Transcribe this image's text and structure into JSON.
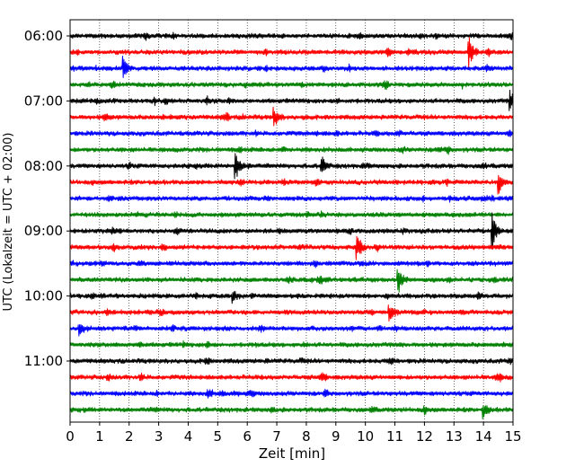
{
  "chart_data": {
    "type": "line",
    "subtype": "helicorder",
    "xlabel": "Zeit  [min]",
    "ylabel": "UTC (Lokalzeit = UTC + 02:00)",
    "xlim": [
      0,
      15
    ],
    "x_ticks": [
      0,
      1,
      2,
      3,
      4,
      5,
      6,
      7,
      8,
      9,
      10,
      11,
      12,
      13,
      14,
      15
    ],
    "grid": "vertical-dotted",
    "trace_interval_min": 15,
    "trace_count": 24,
    "y_tick_labels": [
      "06:00",
      "07:00",
      "08:00",
      "09:00",
      "10:00",
      "11:00"
    ],
    "y_tick_trace_index": [
      0,
      4,
      8,
      12,
      16,
      20
    ],
    "color_cycle": [
      "#000000",
      "#ff0000",
      "#0000ff",
      "#008000"
    ],
    "events": [
      {
        "trace": 1,
        "minute": 13.5,
        "amplitude": 1.6
      },
      {
        "trace": 2,
        "minute": 1.8,
        "amplitude": 1.1
      },
      {
        "trace": 4,
        "minute": 14.9,
        "amplitude": 1.2
      },
      {
        "trace": 5,
        "minute": 6.9,
        "amplitude": 1.1
      },
      {
        "trace": 8,
        "minute": 5.6,
        "amplitude": 1.5
      },
      {
        "trace": 8,
        "minute": 8.5,
        "amplitude": 1.1
      },
      {
        "trace": 9,
        "minute": 14.5,
        "amplitude": 1.2
      },
      {
        "trace": 12,
        "minute": 14.3,
        "amplitude": 1.7
      },
      {
        "trace": 13,
        "minute": 9.7,
        "amplitude": 1.3
      },
      {
        "trace": 15,
        "minute": 11.1,
        "amplitude": 1.6
      },
      {
        "trace": 16,
        "minute": 5.5,
        "amplitude": 0.6
      },
      {
        "trace": 17,
        "minute": 10.8,
        "amplitude": 0.9
      },
      {
        "trace": 18,
        "minute": 0.3,
        "amplitude": 0.7
      },
      {
        "trace": 23,
        "minute": 14.0,
        "amplitude": 0.7
      }
    ]
  }
}
